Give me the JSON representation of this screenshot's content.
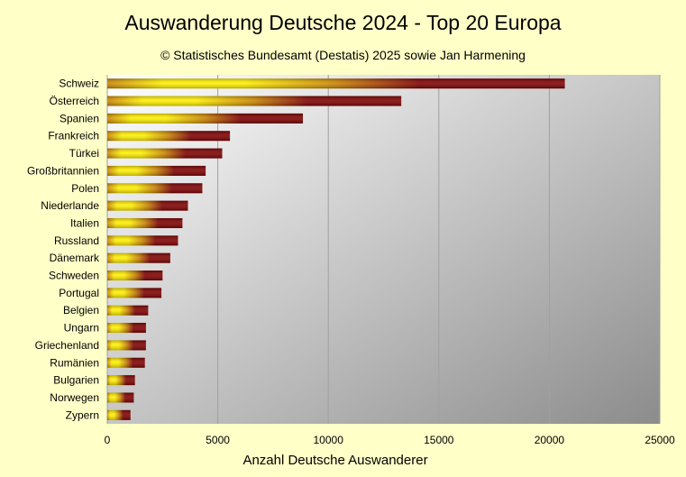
{
  "chart_data": {
    "type": "bar",
    "orientation": "horizontal",
    "title": "Auswanderung Deutsche 2024 - Top 20 Europa",
    "subtitle": "© Statistisches Bundesamt (Destatis) 2025 sowie Jan Harmening",
    "xlabel": "Anzahl Deutsche Auswanderer",
    "ylabel": "",
    "xlim": [
      0,
      25000
    ],
    "xticks": [
      "0",
      "5000",
      "10000",
      "15000",
      "20000",
      "25000"
    ],
    "grid": true,
    "legend": "none",
    "categories": [
      "Schweiz",
      "Österreich",
      "Spanien",
      "Frankreich",
      "Türkei",
      "Großbritannien",
      "Polen",
      "Niederlande",
      "Italien",
      "Russland",
      "Dänemark",
      "Schweden",
      "Portugal",
      "Belgien",
      "Ungarn",
      "Griechenland",
      "Rumänien",
      "Bulgarien",
      "Norwegen",
      "Zypern"
    ],
    "values": [
      20700,
      13300,
      8850,
      5550,
      5200,
      4450,
      4300,
      3650,
      3400,
      3200,
      2850,
      2500,
      2450,
      1850,
      1750,
      1750,
      1700,
      1250,
      1200,
      1050
    ]
  },
  "colors": {
    "background": "#ffffc8",
    "plot_gradient_start": "#ffffff",
    "plot_gradient_end": "#8c8c8c",
    "bar_dark": "#7d0000",
    "bar_mid": "#c88200",
    "bar_bright": "#ffee00",
    "grid": "#a0a0a0"
  }
}
